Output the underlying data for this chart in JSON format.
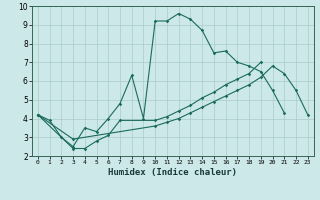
{
  "title": "",
  "xlabel": "Humidex (Indice chaleur)",
  "xlim": [
    -0.5,
    23.5
  ],
  "ylim": [
    2,
    10
  ],
  "xticks": [
    0,
    1,
    2,
    3,
    4,
    5,
    6,
    7,
    8,
    9,
    10,
    11,
    12,
    13,
    14,
    15,
    16,
    17,
    18,
    19,
    20,
    21,
    22,
    23
  ],
  "yticks": [
    2,
    3,
    4,
    5,
    6,
    7,
    8,
    9,
    10
  ],
  "bg_color": "#cce8e8",
  "grid_color": "#aacccc",
  "line_color": "#1a6b5a",
  "line1_x": [
    0,
    1,
    2,
    3,
    4,
    5,
    6,
    7,
    8,
    9,
    10,
    11,
    12,
    13,
    14,
    15,
    16,
    17,
    18,
    19,
    20,
    21
  ],
  "line1_y": [
    4.2,
    3.9,
    3.0,
    2.5,
    3.5,
    3.3,
    4.0,
    4.8,
    6.3,
    4.0,
    9.2,
    9.2,
    9.6,
    9.3,
    8.7,
    7.5,
    7.6,
    7.0,
    6.8,
    6.5,
    5.5,
    4.3
  ],
  "line2_x": [
    0,
    3,
    4,
    5,
    6,
    7,
    10,
    11,
    12,
    13,
    14,
    15,
    16,
    17,
    18,
    19
  ],
  "line2_y": [
    4.2,
    2.4,
    2.4,
    2.8,
    3.1,
    3.9,
    3.9,
    4.1,
    4.4,
    4.7,
    5.1,
    5.4,
    5.8,
    6.1,
    6.4,
    7.0
  ],
  "line3_x": [
    0,
    3,
    10,
    11,
    12,
    13,
    14,
    15,
    16,
    17,
    18,
    19,
    20,
    21,
    22,
    23
  ],
  "line3_y": [
    4.2,
    2.9,
    3.6,
    3.8,
    4.0,
    4.3,
    4.6,
    4.9,
    5.2,
    5.5,
    5.8,
    6.2,
    6.8,
    6.4,
    5.5,
    4.2
  ]
}
